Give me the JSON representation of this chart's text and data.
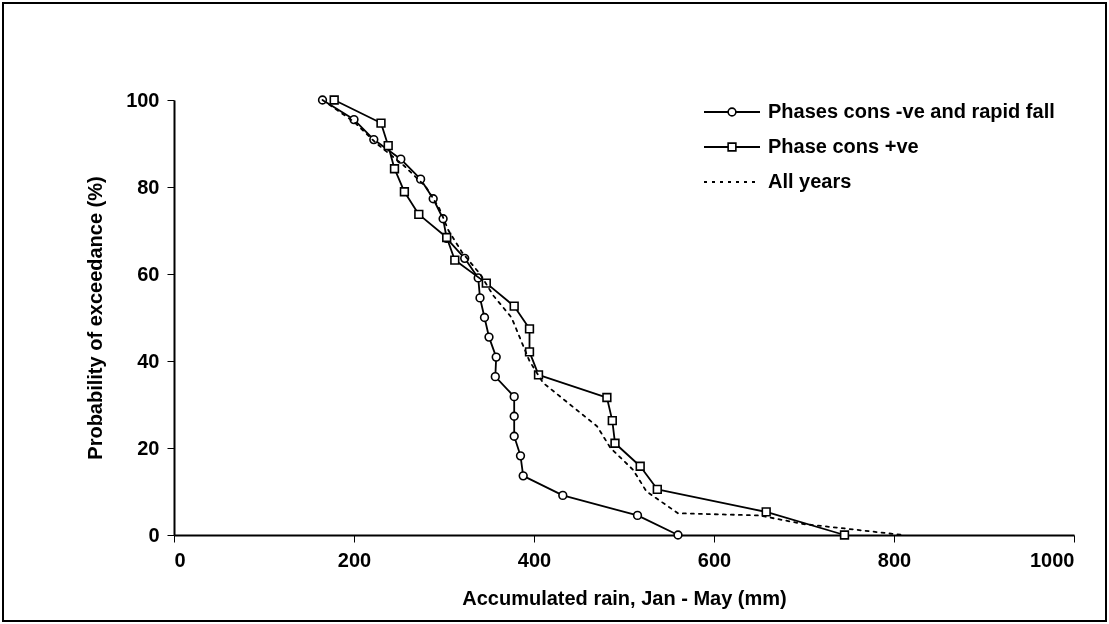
{
  "chart_data": {
    "type": "line",
    "xlabel": "Accumulated rain, Jan - May (mm)",
    "ylabel": "Probability of exceedance    (%)",
    "xlim": [
      0,
      1000
    ],
    "xticks": [
      0,
      200,
      400,
      600,
      800,
      1000
    ],
    "ylim": [
      0,
      100
    ],
    "yticks": [
      0,
      20,
      40,
      60,
      80,
      100
    ],
    "grid": false,
    "legend": "top right",
    "series": [
      {
        "name": "Phases cons -ve and rapid fall",
        "color": "#000000",
        "marker": "circle",
        "line_style": "solid",
        "x": [
          165,
          200,
          222,
          252,
          274,
          288,
          299,
          303,
          323,
          338,
          340,
          345,
          350,
          358,
          357,
          378,
          378,
          378,
          385,
          388,
          432,
          515,
          560
        ],
        "values": [
          100,
          95.5,
          90.9,
          86.4,
          81.8,
          77.3,
          72.7,
          68.2,
          63.6,
          59.1,
          54.5,
          50,
          45.5,
          40.9,
          36.4,
          31.8,
          27.3,
          22.7,
          18.2,
          13.6,
          9.1,
          4.5,
          0
        ]
      },
      {
        "name": "Phase cons +ve",
        "color": "#000000",
        "marker": "square",
        "line_style": "solid",
        "x": [
          178,
          230,
          238,
          245,
          256,
          272,
          303,
          312,
          347,
          378,
          395,
          395,
          405,
          481,
          487,
          490,
          518,
          537,
          658,
          745
        ],
        "values": [
          100,
          94.7,
          89.5,
          84.2,
          78.9,
          73.7,
          68.4,
          63.2,
          57.9,
          52.6,
          47.4,
          42.1,
          36.8,
          31.6,
          26.3,
          21.1,
          15.8,
          10.5,
          5.3,
          0
        ]
      },
      {
        "name": "All years",
        "color": "#000000",
        "marker": "none",
        "line_style": "dotted",
        "x": [
          165,
          200,
          225,
          255,
          280,
          295,
          305,
          320,
          340,
          355,
          375,
          385,
          395,
          410,
          440,
          470,
          485,
          510,
          525,
          560,
          650,
          700,
          745,
          810
        ],
        "values": [
          100,
          95,
          90,
          85,
          80,
          75,
          70,
          65,
          60,
          55,
          50,
          45,
          40,
          35,
          30,
          25,
          20,
          15,
          10,
          5,
          4.5,
          2.5,
          1.5,
          0
        ]
      }
    ]
  }
}
